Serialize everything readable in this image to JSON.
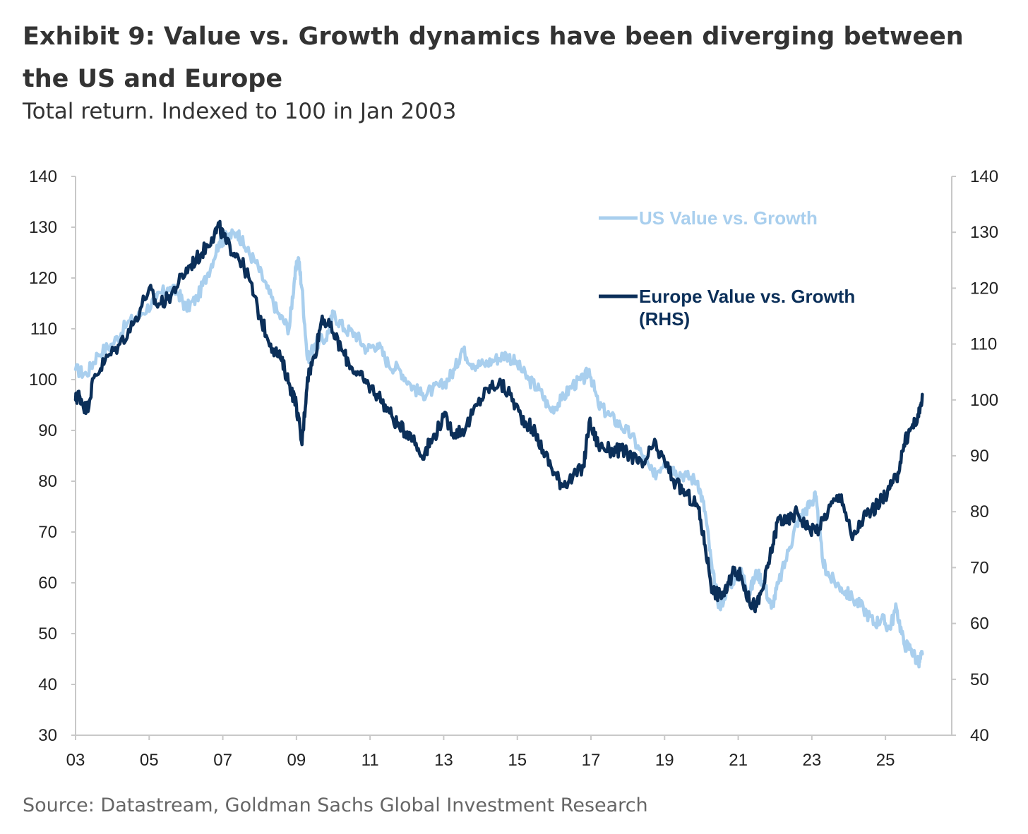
{
  "header": {
    "title": "Exhibit 9: Value vs. Growth dynamics have been diverging between the US and Europe",
    "subtitle": "Total return. Indexed to 100 in Jan 2003"
  },
  "footer": {
    "source": "Source: Datastream, Goldman Sachs Global Investment Research"
  },
  "colors": {
    "us": "#a9cfee",
    "europe": "#0b2f59",
    "axis": "#c8c8c8"
  },
  "chart_data": {
    "type": "line",
    "title": "Exhibit 9: Value vs. Growth dynamics have been diverging between the US and Europe",
    "subtitle": "Total return. Indexed to 100 in Jan 2003",
    "xlabel": "",
    "ylabel_left": "",
    "ylabel_right": "",
    "xlim": [
      2003,
      2026.8
    ],
    "ylim_left": [
      30,
      140
    ],
    "ylim_right": [
      40,
      140
    ],
    "x_ticks": [
      2003,
      2005,
      2007,
      2009,
      2011,
      2013,
      2015,
      2017,
      2019,
      2021,
      2023,
      2025
    ],
    "x_tick_labels": [
      "03",
      "05",
      "07",
      "09",
      "11",
      "13",
      "15",
      "17",
      "19",
      "21",
      "23",
      "25"
    ],
    "y_ticks_left": [
      "140",
      "130",
      "120",
      "110",
      "100",
      "90",
      "80",
      "70",
      "60",
      "50",
      "40",
      "30"
    ],
    "y_ticks_right": [
      "140",
      "130",
      "120",
      "110",
      "100",
      "90",
      "80",
      "70",
      "60",
      "50",
      "40"
    ],
    "legend_position": "top-right",
    "series": [
      {
        "name": "US Value vs. Growth",
        "axis": "left",
        "x": [
          2003.0,
          2003.3,
          2003.6,
          2004.0,
          2004.4,
          2004.8,
          2005.2,
          2005.5,
          2005.8,
          2006.0,
          2006.3,
          2006.6,
          2006.9,
          2007.1,
          2007.4,
          2007.6,
          2007.9,
          2008.2,
          2008.5,
          2008.8,
          2008.95,
          2009.05,
          2009.15,
          2009.3,
          2009.5,
          2009.8,
          2010.0,
          2010.3,
          2010.6,
          2010.9,
          2011.2,
          2011.5,
          2011.8,
          2012.1,
          2012.4,
          2012.7,
          2013.0,
          2013.3,
          2013.5,
          2013.8,
          2014.1,
          2014.4,
          2014.7,
          2015.0,
          2015.3,
          2015.6,
          2015.9,
          2016.2,
          2016.5,
          2016.8,
          2016.95,
          2017.2,
          2017.5,
          2017.8,
          2018.1,
          2018.4,
          2018.7,
          2019.0,
          2019.3,
          2019.6,
          2019.9,
          2020.1,
          2020.3,
          2020.5,
          2020.7,
          2020.9,
          2021.1,
          2021.3,
          2021.5,
          2021.7,
          2021.9,
          2022.1,
          2022.4,
          2022.6,
          2022.8,
          2023.0,
          2023.1,
          2023.3,
          2023.5,
          2023.8,
          2024.1,
          2024.4,
          2024.7,
          2024.9,
          2025.1,
          2025.3,
          2025.5,
          2025.7,
          2025.9,
          2026.0
        ],
        "y": [
          102,
          101,
          105,
          107,
          111,
          113,
          116,
          118,
          117,
          114,
          116,
          121,
          127,
          128,
          129,
          126,
          123,
          118,
          113,
          110,
          120,
          124,
          118,
          104,
          107,
          108,
          113,
          110,
          109,
          106,
          107,
          103,
          102,
          99,
          97,
          98,
          99,
          102,
          106,
          103,
          103,
          104,
          105,
          103,
          100,
          98,
          94,
          96,
          99,
          100,
          102,
          95,
          93,
          91,
          89,
          85,
          81,
          84,
          82,
          81,
          80,
          74,
          62,
          55,
          59,
          61,
          62,
          58,
          62,
          60,
          55,
          60,
          67,
          72,
          74,
          76,
          77,
          64,
          61,
          59,
          57,
          55,
          52,
          53,
          51,
          55,
          48,
          47,
          44,
          46
        ]
      },
      {
        "name": "Europe Value vs. Growth (RHS)",
        "axis": "right",
        "x": [
          2003.0,
          2003.1,
          2003.3,
          2003.5,
          2003.8,
          2004.2,
          2004.6,
          2005.0,
          2005.2,
          2005.5,
          2005.8,
          2006.1,
          2006.4,
          2006.7,
          2006.9,
          2007.1,
          2007.4,
          2007.7,
          2008.0,
          2008.3,
          2008.6,
          2008.8,
          2009.0,
          2009.15,
          2009.3,
          2009.5,
          2009.7,
          2010.0,
          2010.3,
          2010.6,
          2010.9,
          2011.2,
          2011.5,
          2011.8,
          2012.1,
          2012.4,
          2012.7,
          2013.0,
          2013.3,
          2013.6,
          2013.9,
          2014.2,
          2014.5,
          2014.8,
          2015.1,
          2015.4,
          2015.7,
          2016.0,
          2016.2,
          2016.5,
          2016.8,
          2016.95,
          2017.2,
          2017.5,
          2017.8,
          2018.1,
          2018.4,
          2018.7,
          2019.0,
          2019.3,
          2019.6,
          2019.9,
          2020.1,
          2020.3,
          2020.5,
          2020.7,
          2020.9,
          2021.1,
          2021.3,
          2021.5,
          2021.7,
          2021.9,
          2022.1,
          2022.3,
          2022.6,
          2022.9,
          2023.2,
          2023.5,
          2023.8,
          2024.1,
          2024.4,
          2024.6,
          2024.9,
          2025.1,
          2025.3,
          2025.5,
          2025.7,
          2025.9,
          2026.0
        ],
        "y": [
          100,
          101,
          98,
          104,
          107,
          110,
          114,
          120,
          117,
          118,
          121,
          124,
          126,
          129,
          131,
          128,
          126,
          122,
          115,
          110,
          107,
          103,
          99,
          92,
          104,
          108,
          115,
          112,
          108,
          105,
          103,
          101,
          98,
          95,
          94,
          90,
          93,
          97,
          94,
          95,
          99,
          102,
          103,
          101,
          97,
          95,
          91,
          87,
          85,
          86,
          88,
          96,
          92,
          91,
          91,
          90,
          88,
          92,
          89,
          85,
          83,
          81,
          74,
          66,
          65,
          66,
          70,
          68,
          64,
          63,
          67,
          73,
          79,
          78,
          80,
          77,
          77,
          81,
          83,
          75,
          79,
          80,
          82,
          84,
          86,
          92,
          95,
          97,
          101
        ]
      }
    ]
  }
}
